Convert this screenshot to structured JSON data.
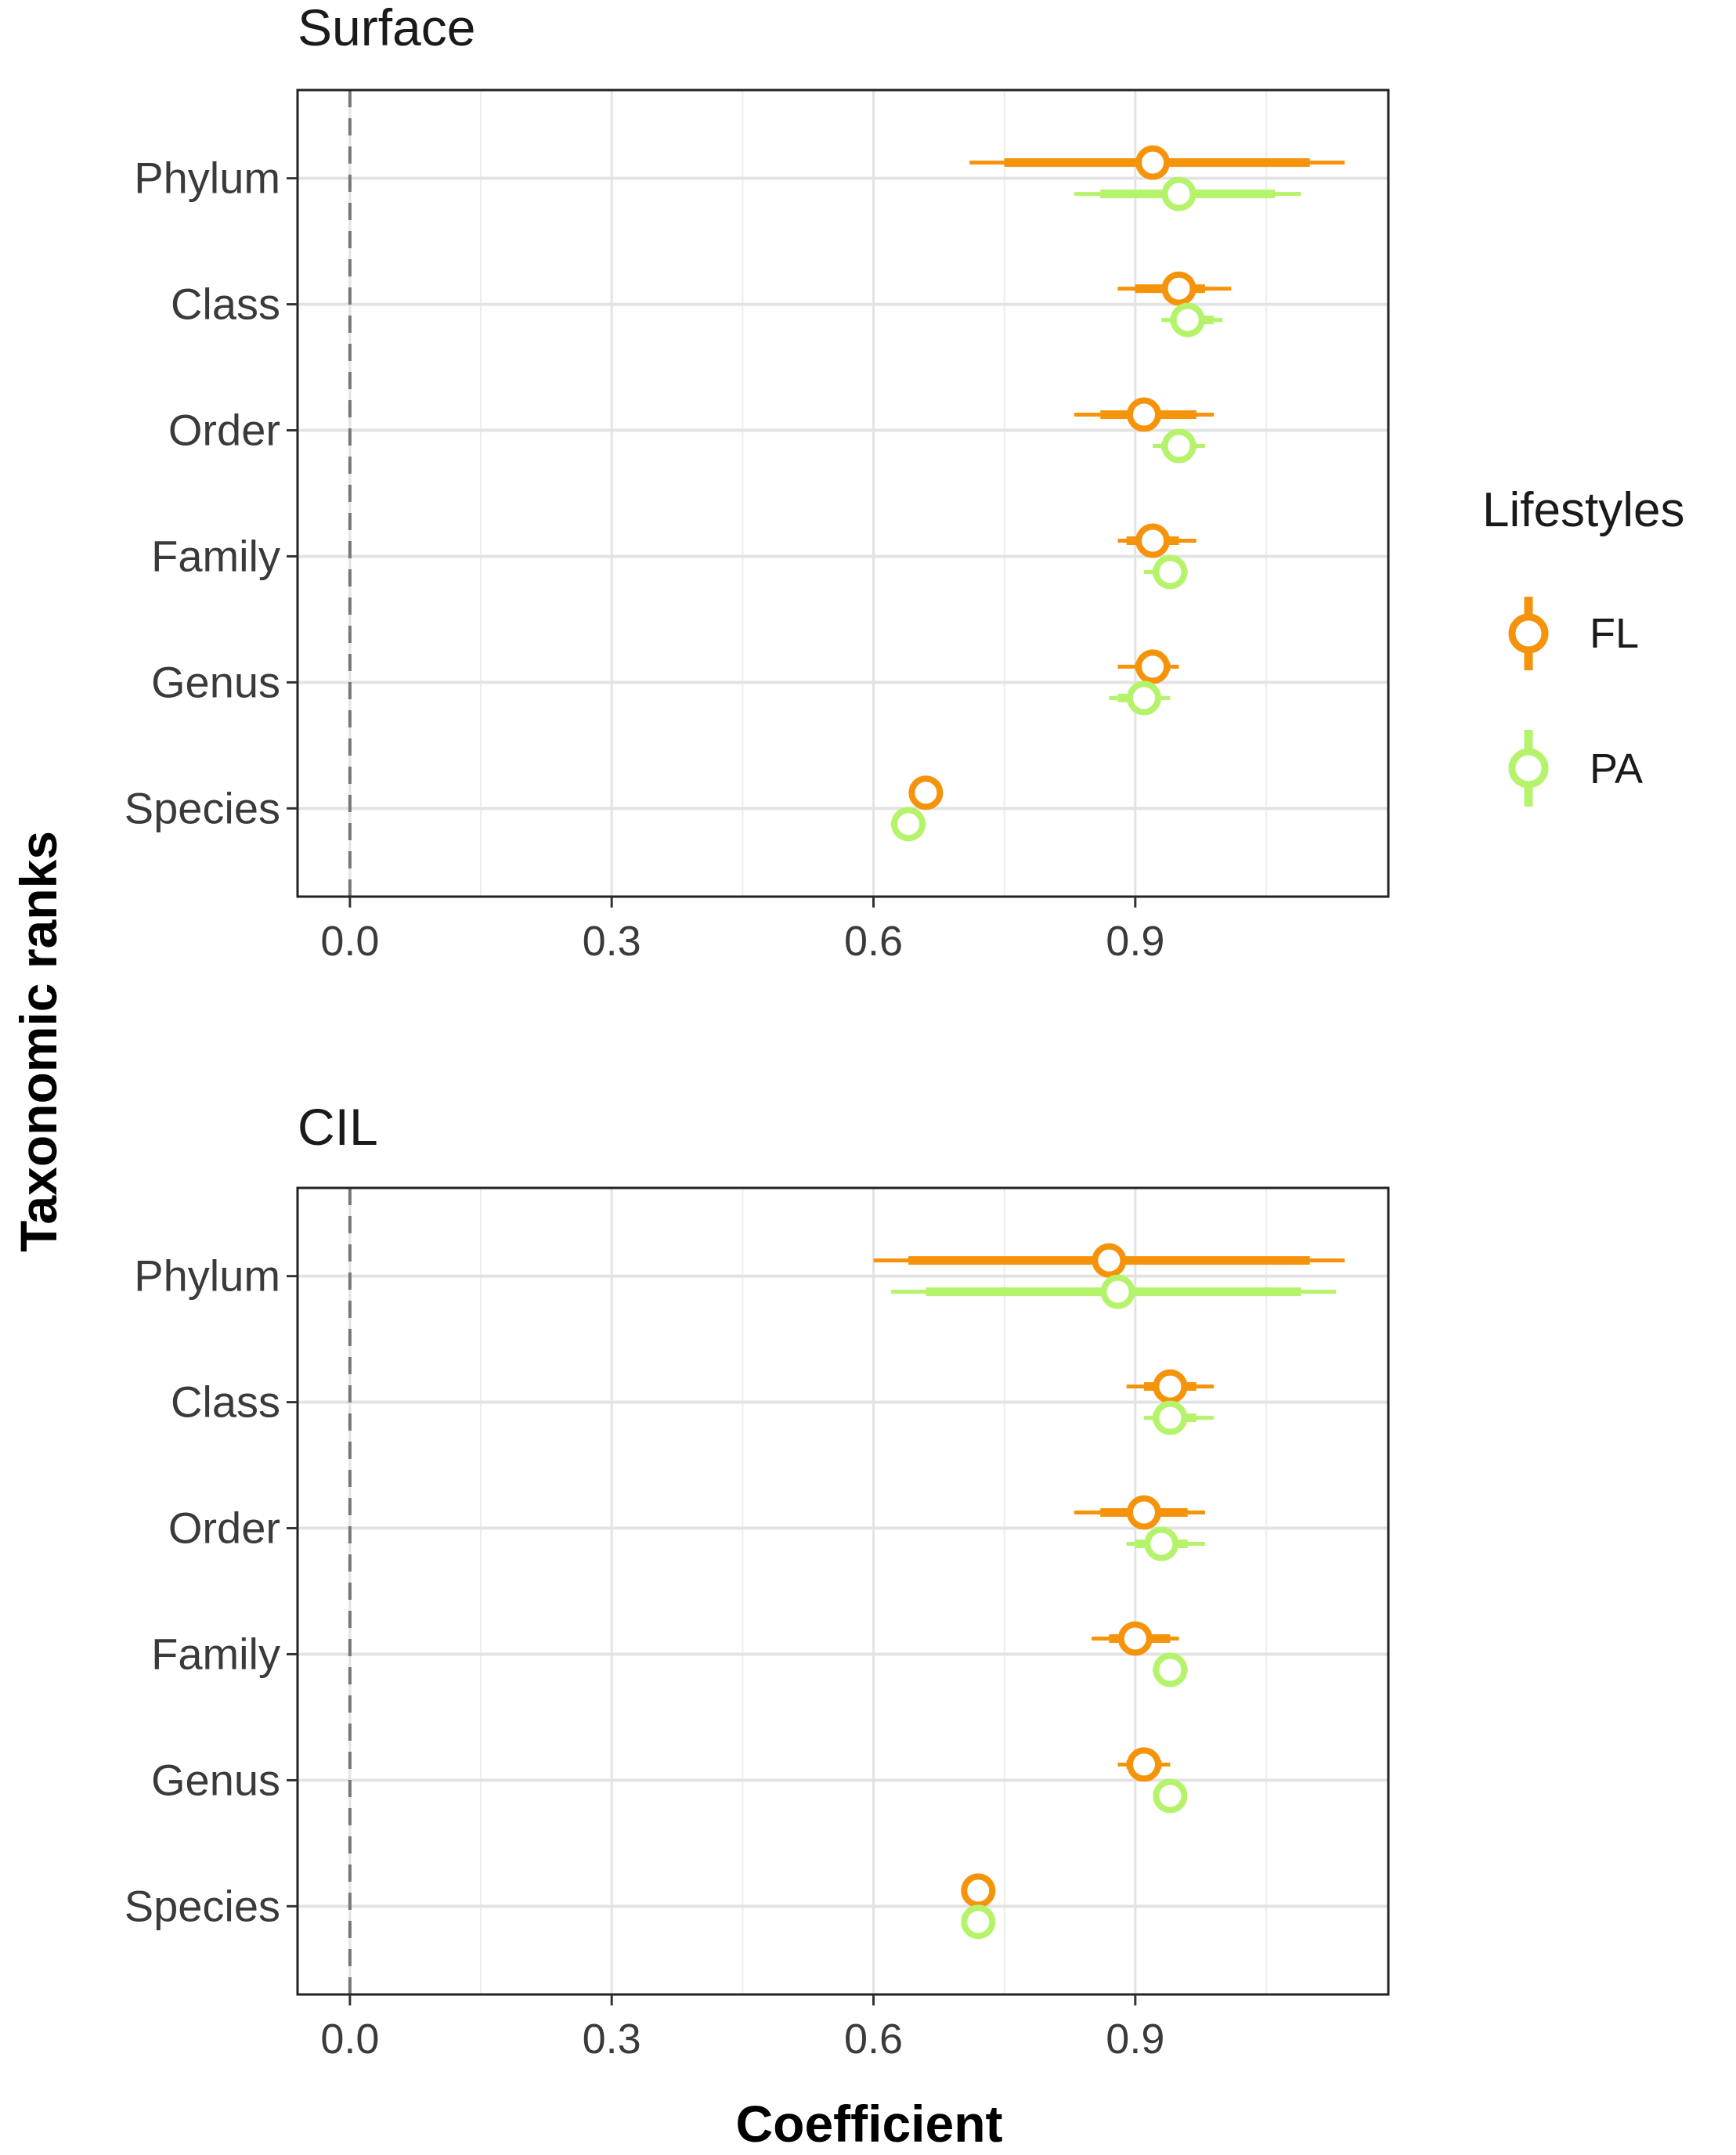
{
  "chart_data": {
    "type": "interval",
    "xlabel": "Coefficient",
    "ylabel": "Taxonomic ranks",
    "xlim": [
      -0.06,
      1.19
    ],
    "xticks": [
      0.0,
      0.3,
      0.6,
      0.9
    ],
    "xtick_labels": [
      "0.0",
      "0.3",
      "0.6",
      "0.9"
    ],
    "reference_line": 0,
    "categories": [
      "Phylum",
      "Class",
      "Order",
      "Family",
      "Genus",
      "Species"
    ],
    "legend": {
      "title": "Lifestyles",
      "entries": [
        {
          "key": "FL",
          "label": "FL",
          "color": "#f5930b"
        },
        {
          "key": "PA",
          "label": "PA",
          "color": "#b5f36b"
        }
      ]
    },
    "panels": [
      {
        "title": "Surface",
        "series": [
          {
            "name": "FL",
            "estimates": [
              0.92,
              0.95,
              0.91,
              0.92,
              0.92,
              0.66
            ],
            "inner": [
              [
                0.75,
                1.1
              ],
              [
                0.9,
                0.98
              ],
              [
                0.86,
                0.97
              ],
              [
                0.89,
                0.95
              ],
              [
                0.9,
                0.94
              ],
              [
                0.66,
                0.66
              ]
            ],
            "outer": [
              [
                0.71,
                1.14
              ],
              [
                0.88,
                1.01
              ],
              [
                0.83,
                0.99
              ],
              [
                0.88,
                0.97
              ],
              [
                0.88,
                0.95
              ],
              [
                0.66,
                0.66
              ]
            ]
          },
          {
            "name": "PA",
            "estimates": [
              0.95,
              0.96,
              0.95,
              0.94,
              0.91,
              0.64
            ],
            "inner": [
              [
                0.86,
                1.06
              ],
              [
                0.94,
                0.99
              ],
              [
                0.93,
                0.97
              ],
              [
                0.92,
                0.95
              ],
              [
                0.88,
                0.92
              ],
              [
                0.63,
                0.65
              ]
            ],
            "outer": [
              [
                0.83,
                1.09
              ],
              [
                0.93,
                1.0
              ],
              [
                0.92,
                0.98
              ],
              [
                0.91,
                0.96
              ],
              [
                0.87,
                0.94
              ],
              [
                0.62,
                0.66
              ]
            ]
          }
        ]
      },
      {
        "title": "CIL",
        "series": [
          {
            "name": "FL",
            "estimates": [
              0.87,
              0.94,
              0.91,
              0.9,
              0.91,
              0.72
            ],
            "inner": [
              [
                0.64,
                1.1
              ],
              [
                0.91,
                0.97
              ],
              [
                0.86,
                0.96
              ],
              [
                0.87,
                0.94
              ],
              [
                0.89,
                0.93
              ],
              [
                0.72,
                0.72
              ]
            ],
            "outer": [
              [
                0.6,
                1.14
              ],
              [
                0.89,
                0.99
              ],
              [
                0.83,
                0.98
              ],
              [
                0.85,
                0.95
              ],
              [
                0.88,
                0.94
              ],
              [
                0.72,
                0.72
              ]
            ]
          },
          {
            "name": "PA",
            "estimates": [
              0.88,
              0.94,
              0.93,
              0.94,
              0.94,
              0.72
            ],
            "inner": [
              [
                0.66,
                1.09
              ],
              [
                0.92,
                0.97
              ],
              [
                0.9,
                0.96
              ],
              [
                0.93,
                0.95
              ],
              [
                0.94,
                0.94
              ],
              [
                0.72,
                0.72
              ]
            ],
            "outer": [
              [
                0.62,
                1.13
              ],
              [
                0.91,
                0.99
              ],
              [
                0.89,
                0.98
              ],
              [
                0.92,
                0.96
              ],
              [
                0.94,
                0.94
              ],
              [
                0.72,
                0.72
              ]
            ]
          }
        ]
      }
    ]
  }
}
